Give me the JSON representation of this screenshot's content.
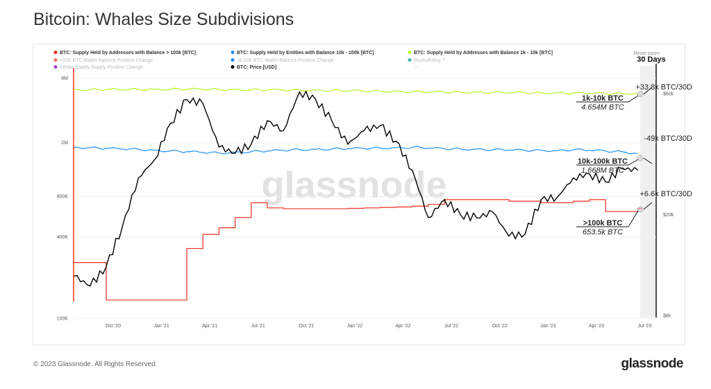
{
  "title": "Bitcoin: Whales Size Subdivisions",
  "footer": {
    "copyright": "© 2023 Glassnode. All Rights Reserved.",
    "brand": "glassnode"
  },
  "chart": {
    "watermark": "glassnode",
    "reset_zoom": "Reset zoom",
    "window_label": "30 Days"
  },
  "legend": [
    {
      "label": "BTC: Supply Held by Addresses with Balance > 100k [BTC]",
      "color": "#f02d1e",
      "active": true
    },
    {
      "label": "BTC: Supply Held by Entities with Balance 10k - 100k [BTC]",
      "color": "#1e8ff0",
      "active": true
    },
    {
      "label": "BTC: Supply Held by Addresses with Balance 1k - 10k [BTC]",
      "color": "#b6f01e",
      "active": true
    },
    {
      "label": ">10K BTC Wallet Balance Position Change",
      "color": "#e8705e",
      "active": false
    },
    {
      "label": "1k-10K BTC Wallet Balance Position Change",
      "color": "#1e8ff0",
      "active": false
    },
    {
      "label": "Reshuffoling ?",
      "color": "#3cb8a0",
      "active": false
    },
    {
      "label": "Whale Supply Supply Position Change",
      "color": "#a040c8",
      "active": false
    },
    {
      "label": "BTC: Price [USD]",
      "color": "#000000",
      "active": true
    },
    {
      "label": "---",
      "color": "#ffffff",
      "active": false
    }
  ],
  "annotations": [
    {
      "change": "+33.8k BTC/30D",
      "name": "1k-10k BTC",
      "value": "4.654M BTC"
    },
    {
      "change": "-49k BTC/30D",
      "name": "10k-100k BTC",
      "value": "1.668M BTC"
    },
    {
      "change": "+6.6k BTC/30D",
      "name": ">100k BTC",
      "value": "653.5k BTC"
    }
  ],
  "chart_data": {
    "type": "line",
    "title": "Bitcoin: Whales Size Subdivisions",
    "x": [
      "2020-08",
      "2020-09",
      "2020-10",
      "2020-11",
      "2020-12",
      "2021-01",
      "2021-02",
      "2021-03",
      "2021-04",
      "2021-05",
      "2021-06",
      "2021-07",
      "2021-08",
      "2021-09",
      "2021-10",
      "2021-11",
      "2021-12",
      "2022-01",
      "2022-02",
      "2022-03",
      "2022-04",
      "2022-05",
      "2022-06",
      "2022-07",
      "2022-08",
      "2022-09",
      "2022-10",
      "2022-11",
      "2022-12",
      "2023-01",
      "2023-02",
      "2023-03",
      "2023-04",
      "2023-05",
      "2023-06",
      "2023-07"
    ],
    "x_ticks": [
      "Oct '20",
      "Jan '21",
      "Apr '21",
      "Jul '21",
      "Oct '21",
      "Jan '22",
      "Apr '22",
      "Jul '22",
      "Oct '22",
      "Jan '23",
      "Apr '23",
      "Jul '23"
    ],
    "y_left": {
      "scale": "log",
      "ticks": [
        "6M",
        "2M",
        "800K",
        "400K",
        "100K"
      ],
      "range": [
        100000,
        6500000
      ]
    },
    "y_right": {
      "scale": "log",
      "ticks": [
        "$60k",
        "$20k",
        "$8k"
      ],
      "range": [
        8000,
        68000
      ]
    },
    "series": [
      {
        "name": "1k-10k [BTC]",
        "axis": "left",
        "color": "#b6f01e",
        "values": [
          4950000,
          4950000,
          4960000,
          4960000,
          4970000,
          4980000,
          4990000,
          5000000,
          4980000,
          4960000,
          4950000,
          4940000,
          4930000,
          4920000,
          4910000,
          4900000,
          4880000,
          4860000,
          4840000,
          4820000,
          4800000,
          4780000,
          4760000,
          4750000,
          4740000,
          4730000,
          4720000,
          4710000,
          4700000,
          4690000,
          4680000,
          4670000,
          4660000,
          4640000,
          4630000,
          4654000
        ]
      },
      {
        "name": "10k-100k [BTC]",
        "axis": "left",
        "color": "#1e8ff0",
        "values": [
          1850000,
          1840000,
          1820000,
          1800000,
          1790000,
          1760000,
          1740000,
          1720000,
          1700000,
          1680000,
          1700000,
          1720000,
          1740000,
          1760000,
          1780000,
          1790000,
          1800000,
          1810000,
          1820000,
          1830000,
          1840000,
          1850000,
          1830000,
          1810000,
          1800000,
          1790000,
          1780000,
          1770000,
          1760000,
          1760000,
          1750000,
          1780000,
          1760000,
          1740000,
          1720000,
          1668000
        ]
      },
      {
        "name": ">100k [BTC]",
        "axis": "left",
        "color": "#f02d1e",
        "step": true,
        "values": [
          260000,
          260000,
          137000,
          137000,
          137000,
          137000,
          137000,
          330000,
          420000,
          470000,
          560000,
          720000,
          660000,
          650000,
          650000,
          650000,
          650000,
          655000,
          660000,
          665000,
          670000,
          680000,
          700000,
          760000,
          760000,
          760000,
          760000,
          740000,
          740000,
          720000,
          720000,
          740000,
          760000,
          620000,
          620000,
          653500
        ]
      },
      {
        "name": "Price [USD]",
        "axis": "right",
        "color": "#000000",
        "values": [
          11500,
          10500,
          12500,
          18000,
          28000,
          33000,
          46000,
          57000,
          55000,
          37000,
          35000,
          38000,
          47000,
          43000,
          61000,
          57000,
          47000,
          38000,
          43000,
          45000,
          39000,
          30000,
          19500,
          23000,
          20000,
          19500,
          20500,
          16500,
          16800,
          23000,
          23500,
          28000,
          29000,
          27000,
          30500,
          30000
        ]
      }
    ]
  }
}
